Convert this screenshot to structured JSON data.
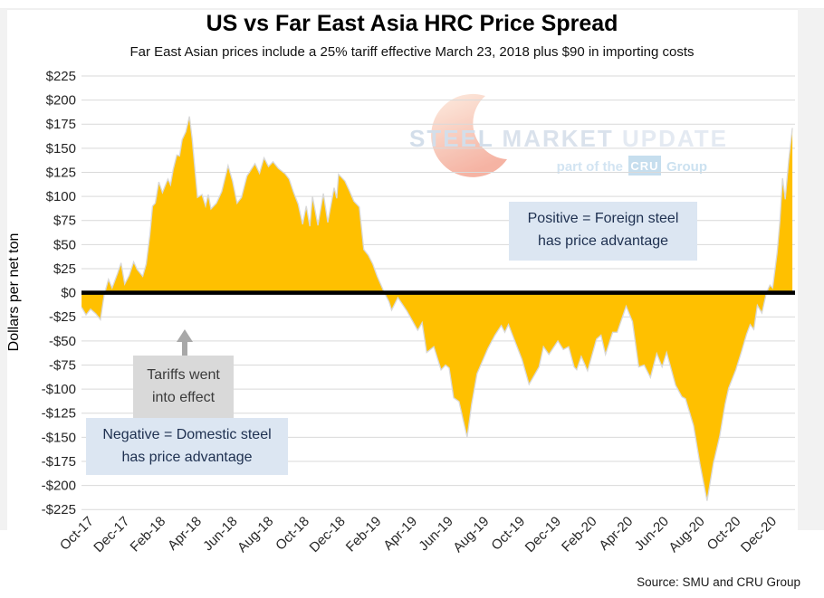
{
  "page": {
    "title": "US vs Far East Asia HRC Price Spread",
    "subtitle": "Far East Asian prices include a 25% tariff effective March 23, 2018 plus $90 in importing costs",
    "source": "Source: SMU and CRU Group"
  },
  "watermark": {
    "word1": "STEEL",
    "word2": "MARKET",
    "word3": "UPDATE",
    "tagline_prefix": "part of the",
    "tagline_logo": "CRU",
    "tagline_suffix": "Group"
  },
  "annotations": {
    "positive_note": {
      "line1": "Positive = Foreign steel",
      "line2": "has price advantage"
    },
    "tariff_note": {
      "line1": "Tariffs went",
      "line2": "into effect"
    },
    "negative_note": {
      "line1": "Negative = Domestic steel",
      "line2": "has price advantage"
    }
  },
  "chart_data": {
    "type": "area",
    "title": "US vs Far East Asia HRC Price Spread",
    "subtitle": "Far East Asian prices include a 25% tariff effective March 23, 2018 plus $90 in importing costs",
    "xlabel": "",
    "ylabel": "Dollars per net ton",
    "ylim": [
      -225,
      225
    ],
    "ytick_step": 25,
    "ytick_labels": [
      "$225",
      "$200",
      "$175",
      "$150",
      "$125",
      "$100",
      "$75",
      "$50",
      "$25",
      "$0",
      "-$25",
      "-$50",
      "-$75",
      "-$100",
      "-$125",
      "-$150",
      "-$175",
      "-$200",
      "-$225"
    ],
    "xtick_labels": [
      "Oct-17",
      "Dec-17",
      "Feb-18",
      "Apr-18",
      "Jun-18",
      "Aug-18",
      "Oct-18",
      "Dec-18",
      "Feb-19",
      "Apr-19",
      "Jun-19",
      "Aug-19",
      "Oct-19",
      "Dec-19",
      "Feb-20",
      "Apr-20",
      "Jun-20",
      "Aug-20",
      "Oct-20",
      "Dec-20"
    ],
    "xtick_interval_months": 2,
    "x_unit": "months since Oct-2017 (fractional = weekly data)",
    "grid": true,
    "legend": false,
    "zero_line": true,
    "series": [
      {
        "name": "US minus Far East Asia HRC price spread",
        "unit": "$ per net ton",
        "points": [
          [
            -0.5,
            -15
          ],
          [
            -0.25,
            -23
          ],
          [
            0,
            -17
          ],
          [
            0.3,
            -22
          ],
          [
            0.55,
            -28
          ],
          [
            0.75,
            -3
          ],
          [
            1,
            14
          ],
          [
            1.2,
            5
          ],
          [
            1.5,
            20
          ],
          [
            1.7,
            31
          ],
          [
            1.9,
            9
          ],
          [
            2.15,
            18
          ],
          [
            2.4,
            32
          ],
          [
            2.6,
            24
          ],
          [
            2.9,
            17
          ],
          [
            3.1,
            30
          ],
          [
            3.3,
            60
          ],
          [
            3.45,
            90
          ],
          [
            3.6,
            93
          ],
          [
            3.8,
            115
          ],
          [
            4,
            104
          ],
          [
            4.3,
            118
          ],
          [
            4.45,
            112
          ],
          [
            4.6,
            128
          ],
          [
            4.8,
            143
          ],
          [
            4.95,
            142
          ],
          [
            5.1,
            159
          ],
          [
            5.3,
            167
          ],
          [
            5.5,
            183
          ],
          [
            5.65,
            160
          ],
          [
            5.95,
            99
          ],
          [
            6.2,
            102
          ],
          [
            6.4,
            90
          ],
          [
            6.55,
            102
          ],
          [
            6.7,
            87
          ],
          [
            7,
            93
          ],
          [
            7.3,
            105
          ],
          [
            7.65,
            132
          ],
          [
            7.9,
            116
          ],
          [
            8.15,
            93
          ],
          [
            8.4,
            99
          ],
          [
            8.7,
            121
          ],
          [
            9.15,
            134
          ],
          [
            9.4,
            124
          ],
          [
            9.65,
            140
          ],
          [
            9.9,
            131
          ],
          [
            10.15,
            136
          ],
          [
            10.45,
            129
          ],
          [
            10.8,
            124
          ],
          [
            11.05,
            118
          ],
          [
            11.3,
            104
          ],
          [
            11.55,
            92
          ],
          [
            11.8,
            71
          ],
          [
            12,
            90
          ],
          [
            12.2,
            69
          ],
          [
            12.35,
            100
          ],
          [
            12.65,
            70
          ],
          [
            12.95,
            103
          ],
          [
            13.2,
            73
          ],
          [
            13.55,
            109
          ],
          [
            13.7,
            98
          ],
          [
            13.8,
            123
          ],
          [
            14.15,
            116
          ],
          [
            14.4,
            106
          ],
          [
            14.65,
            95
          ],
          [
            14.95,
            89
          ],
          [
            15.2,
            45
          ],
          [
            15.45,
            39
          ],
          [
            15.7,
            30
          ],
          [
            15.95,
            17
          ],
          [
            16.35,
            0
          ],
          [
            16.6,
            -9
          ],
          [
            16.75,
            -18
          ],
          [
            17.1,
            -5
          ],
          [
            17.6,
            -19
          ],
          [
            18.2,
            -39
          ],
          [
            18.45,
            -31
          ],
          [
            18.7,
            -62
          ],
          [
            19.1,
            -56
          ],
          [
            19.5,
            -80
          ],
          [
            19.75,
            -75
          ],
          [
            19.95,
            -78
          ],
          [
            20.2,
            -109
          ],
          [
            20.5,
            -113
          ],
          [
            20.95,
            -150
          ],
          [
            21.2,
            -116
          ],
          [
            21.5,
            -84
          ],
          [
            22.1,
            -58
          ],
          [
            22.5,
            -44
          ],
          [
            22.85,
            -34
          ],
          [
            23.05,
            -41
          ],
          [
            23.25,
            -33
          ],
          [
            23.6,
            -50
          ],
          [
            24,
            -69
          ],
          [
            24.4,
            -95
          ],
          [
            24.95,
            -77
          ],
          [
            25.2,
            -56
          ],
          [
            25.5,
            -64
          ],
          [
            26,
            -50
          ],
          [
            26.3,
            -59
          ],
          [
            26.6,
            -56
          ],
          [
            26.9,
            -77
          ],
          [
            27.05,
            -80
          ],
          [
            27.3,
            -66
          ],
          [
            27.65,
            -81
          ],
          [
            28.15,
            -48
          ],
          [
            28.4,
            -44
          ],
          [
            28.65,
            -64
          ],
          [
            29.05,
            -41
          ],
          [
            29.3,
            -41
          ],
          [
            29.8,
            -14
          ],
          [
            30.15,
            -30
          ],
          [
            30.5,
            -77
          ],
          [
            30.8,
            -75
          ],
          [
            31.15,
            -88
          ],
          [
            31.5,
            -63
          ],
          [
            31.8,
            -77
          ],
          [
            32.05,
            -62
          ],
          [
            32.55,
            -96
          ],
          [
            32.9,
            -108
          ],
          [
            33.1,
            -110
          ],
          [
            33.55,
            -138
          ],
          [
            33.9,
            -177
          ],
          [
            34.3,
            -216
          ],
          [
            34.65,
            -177
          ],
          [
            35,
            -149
          ],
          [
            35.3,
            -116
          ],
          [
            35.5,
            -99
          ],
          [
            35.9,
            -80
          ],
          [
            36.2,
            -62
          ],
          [
            36.5,
            -43
          ],
          [
            36.7,
            -33
          ],
          [
            36.9,
            -38
          ],
          [
            37.1,
            -13
          ],
          [
            37.35,
            -21
          ],
          [
            37.6,
            0
          ],
          [
            37.8,
            8
          ],
          [
            37.95,
            5
          ],
          [
            38.2,
            42
          ],
          [
            38.35,
            73
          ],
          [
            38.5,
            119
          ],
          [
            38.65,
            97
          ],
          [
            38.85,
            139
          ],
          [
            39.05,
            171
          ]
        ]
      }
    ],
    "colors": {
      "area_fill": "#FFC000",
      "area_edge": "#D8D8D8",
      "zero_line": "#000000",
      "gridline": "#D9D9D9",
      "note_blue_bg": "#DCE6F2",
      "note_gray_bg": "#D9D9D9",
      "arrow_gray": "#A8A8A8",
      "watermark_blue": "#C9D6E5",
      "watermark_orange": "#F3A18D",
      "cru_box": "#B9D6EB"
    }
  }
}
